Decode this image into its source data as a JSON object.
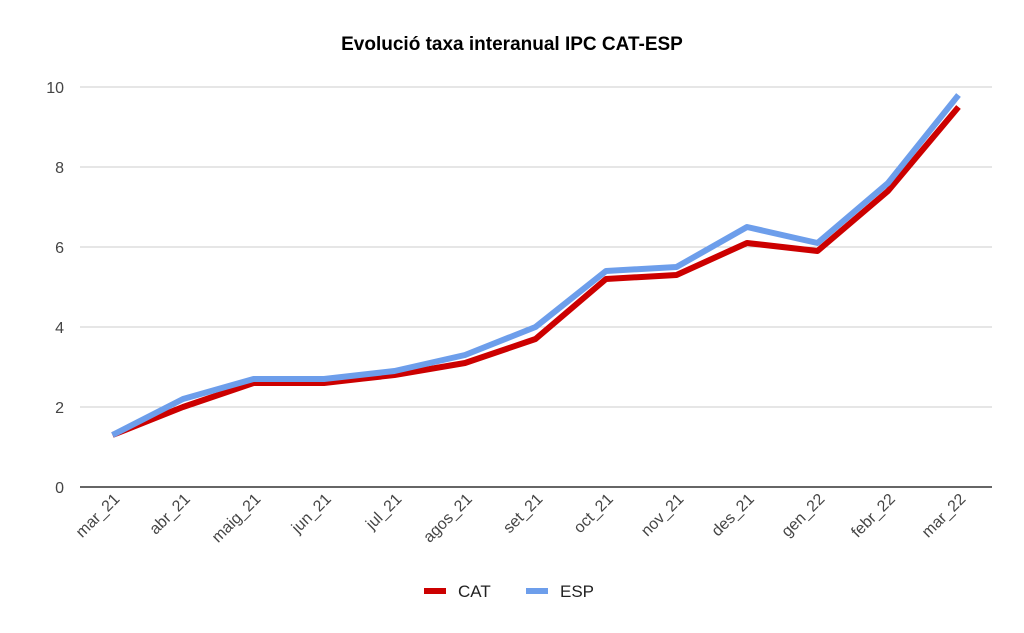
{
  "chart_data": {
    "type": "line",
    "title": "Evolució taxa interanual IPC CAT-ESP",
    "xlabel": "",
    "ylabel": "",
    "categories": [
      "mar_21",
      "abr_21",
      "maig_21",
      "jun_21",
      "jul_21",
      "agos_21",
      "set_21",
      "oct_21",
      "nov_21",
      "des_21",
      "gen_22",
      "febr_22",
      "mar_22"
    ],
    "series": [
      {
        "name": "CAT",
        "color": "#cc0000",
        "values": [
          1.3,
          2.0,
          2.6,
          2.6,
          2.8,
          3.1,
          3.7,
          5.2,
          5.3,
          6.1,
          5.9,
          7.4,
          9.5
        ]
      },
      {
        "name": "ESP",
        "color": "#6d9eeb",
        "values": [
          1.3,
          2.2,
          2.7,
          2.7,
          2.9,
          3.3,
          4.0,
          5.4,
          5.5,
          6.5,
          6.1,
          7.6,
          9.8
        ]
      }
    ],
    "ylim": [
      0,
      10
    ],
    "yticks": [
      0,
      2,
      4,
      6,
      8,
      10
    ],
    "grid": true,
    "legend_position": "bottom"
  }
}
